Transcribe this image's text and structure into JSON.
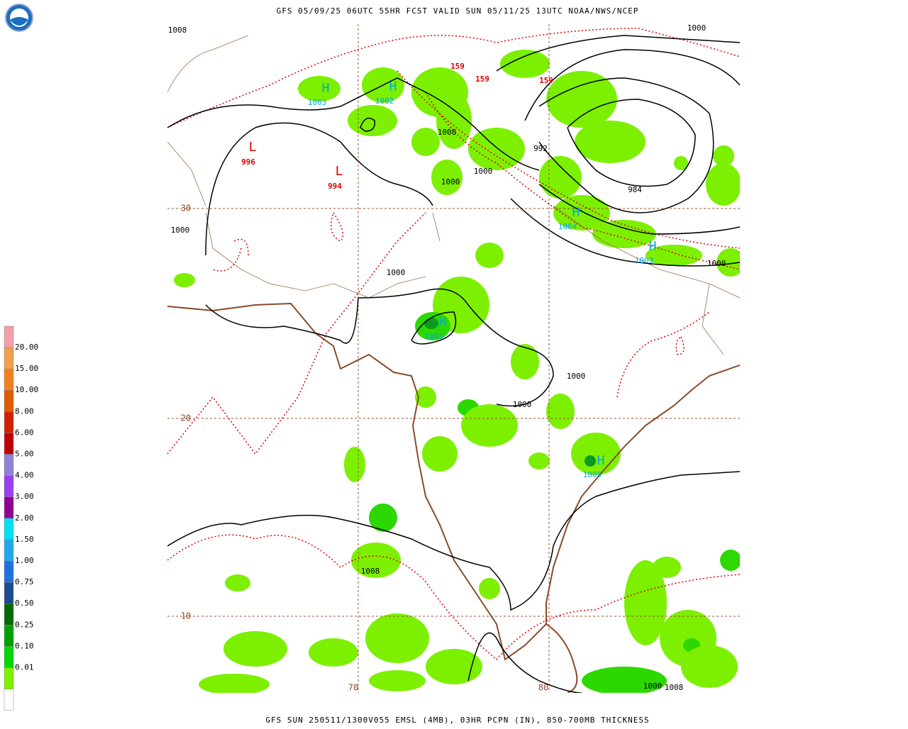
{
  "header": {
    "title": "GFS 05/09/25 06UTC 55HR FCST VALID SUN 05/11/25 13UTC NOAA/NWS/NCEP"
  },
  "footer": {
    "caption": "GFS SUN 250511/1300V055 EMSL (4MB), 03HR PCPN (IN), 850-700MB THICKNESS"
  },
  "legend": {
    "labels": [
      "20.00",
      "15.00",
      "10.00",
      "8.00",
      "6.00",
      "5.00",
      "4.00",
      "3.00",
      "2.00",
      "1.50",
      "1.00",
      "0.75",
      "0.50",
      "0.25",
      "0.10",
      "0.01"
    ],
    "colors": [
      "#f4a0a8",
      "#f0a050",
      "#f08020",
      "#e05a00",
      "#d02000",
      "#c00000",
      "#9080d8",
      "#9a40f0",
      "#900090",
      "#00e0f0",
      "#20a8e8",
      "#2070e0",
      "#1c4a90",
      "#006a00",
      "#00a000",
      "#00d800",
      "#80f000",
      "#ffffff"
    ]
  },
  "map": {
    "lat_labels": [
      "30",
      "20",
      "10"
    ],
    "lon_labels": [
      "70",
      "80"
    ],
    "isobar_labels": [
      "1008",
      "1000",
      "992",
      "984",
      "1000",
      "1000",
      "1000",
      "1000",
      "1000",
      "1000",
      "1008",
      "1008",
      "1000",
      "1000",
      "1008"
    ],
    "thickness_labels": [
      "159",
      "159",
      "159"
    ],
    "highs": [
      {
        "symbol": "H",
        "value": "1003"
      },
      {
        "symbol": "H",
        "value": "1002"
      },
      {
        "symbol": "H",
        "value": "1005"
      },
      {
        "symbol": "H",
        "value": "1004"
      },
      {
        "symbol": "H",
        "value": "1003"
      },
      {
        "symbol": "H",
        "value": "1005"
      }
    ],
    "lows": [
      {
        "symbol": "L",
        "value": "996"
      },
      {
        "symbol": "L",
        "value": "994"
      }
    ]
  }
}
